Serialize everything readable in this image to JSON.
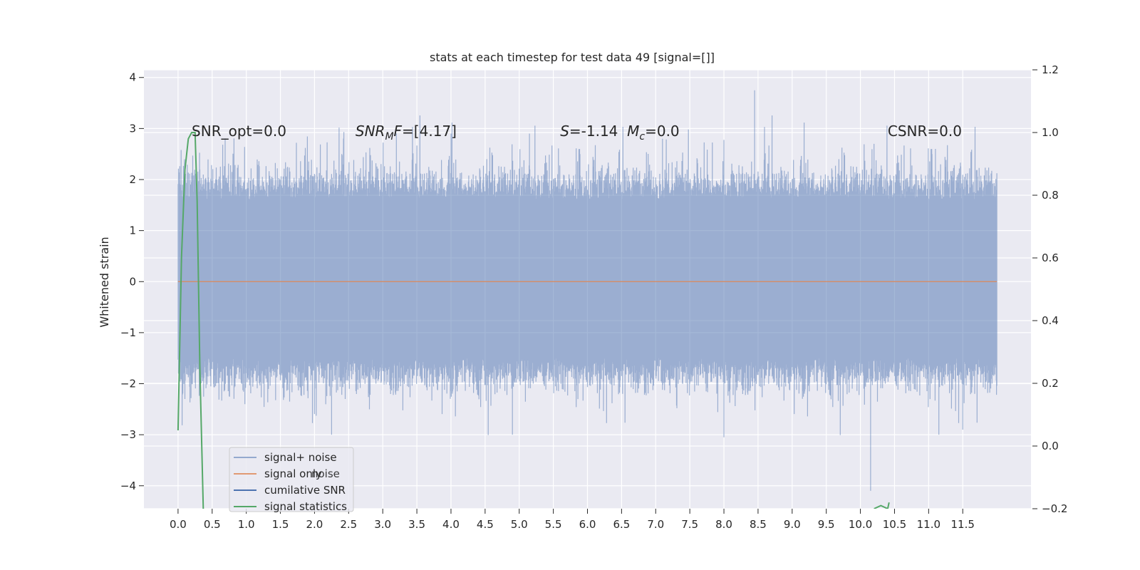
{
  "chart_data": {
    "type": "line",
    "title": "stats at each timestep for test data 49 [signal=[]]",
    "ylabel": "Whitened strain",
    "xlim": [
      -0.5,
      12.5
    ],
    "ylim": [
      -4.45,
      4.15
    ],
    "y2lim": [
      -0.2,
      1.2
    ],
    "x_ticks": [
      0.0,
      0.5,
      1.0,
      1.5,
      2.0,
      2.5,
      3.0,
      3.5,
      4.0,
      4.5,
      5.0,
      5.5,
      6.0,
      6.5,
      7.0,
      7.5,
      8.0,
      8.5,
      9.0,
      9.5,
      10.0,
      10.5,
      11.0,
      11.5
    ],
    "x_tick_labels": [
      "0.0",
      "0.5",
      "1.0",
      "1.5",
      "2.0",
      "2.5",
      "3.0",
      "3.5",
      "4.0",
      "4.5",
      "5.0",
      "5.5",
      "6.0",
      "6.5",
      "7.0",
      "7.5",
      "8.0",
      "8.5",
      "9.0",
      "9.5",
      "10.0",
      "10.5",
      "11.0",
      "11.5"
    ],
    "y_ticks": [
      4,
      3,
      2,
      1,
      0,
      -1,
      -2,
      -3,
      -4
    ],
    "y_tick_labels": [
      "4",
      "3",
      "2",
      "1",
      "0",
      "−1",
      "−2",
      "−3",
      "−4"
    ],
    "y2_ticks": [
      1.2,
      1.0,
      0.8,
      0.6,
      0.4,
      0.2,
      0.0,
      -0.2
    ],
    "y2_tick_labels": [
      "1.2",
      "1.0",
      "0.8",
      "0.6",
      "0.4",
      "0.2",
      "0.0",
      "−0.2"
    ],
    "grid": true,
    "legend_position": "lower-left",
    "series": [
      {
        "name": "signal+ noise",
        "color": "#4c72b0",
        "opacity": 0.5,
        "x_range": [
          0.0,
          12.0
        ],
        "band": {
          "typical_low": -1.5,
          "typical_high": 1.6,
          "min": -4.1,
          "max": 3.75
        },
        "peaks": [
          [
            2.4,
            2.5
          ],
          [
            3.2,
            2.9
          ],
          [
            3.5,
            2.55
          ],
          [
            4.0,
            2.9
          ],
          [
            5.15,
            2.9
          ],
          [
            7.1,
            2.8
          ],
          [
            8.45,
            3.75
          ],
          [
            10.2,
            2.7
          ],
          [
            11.1,
            2.6
          ]
        ],
        "troughs": [
          [
            0.1,
            -2.3
          ],
          [
            2.25,
            -3.0
          ],
          [
            4.9,
            -3.0
          ],
          [
            8.0,
            -3.05
          ],
          [
            10.15,
            -4.1
          ],
          [
            11.15,
            -3.0
          ],
          [
            11.5,
            -2.9
          ]
        ]
      },
      {
        "name": "signal only",
        "color": "#dd8452",
        "x": [
          0.0,
          12.0
        ],
        "y": [
          0.0,
          0.0
        ]
      },
      {
        "name": "cumilative SNR",
        "color": "#4c72b0",
        "x": [],
        "y": []
      },
      {
        "name": "signal statistics",
        "color": "#55a868",
        "axis": "right",
        "x": [
          0.0,
          0.05,
          0.1,
          0.15,
          0.2,
          0.25,
          0.28,
          0.32,
          0.37,
          10.2,
          10.3,
          10.4,
          10.42
        ],
        "y": [
          0.05,
          0.6,
          0.88,
          0.98,
          1.0,
          1.0,
          0.78,
          0.25,
          -0.2,
          -0.2,
          -0.19,
          -0.2,
          -0.18
        ]
      }
    ],
    "annotations": [
      {
        "text": "SNR_opt=0.0",
        "x": 0.2,
        "y": 2.95
      },
      {
        "text": "SNR_MF=[4.17]",
        "x": 2.6,
        "y": 2.95,
        "math": true
      },
      {
        "text": "S=-1.14  M_c=0.0",
        "x": 5.6,
        "y": 2.95,
        "math": true
      },
      {
        "text": "CSNR=0.0",
        "x": 10.4,
        "y": 2.95
      }
    ],
    "legend": [
      "signal+ noise",
      "signal only",
      "cumilative SNR",
      "signal statistics"
    ],
    "legend_ghost_text": "noise"
  }
}
